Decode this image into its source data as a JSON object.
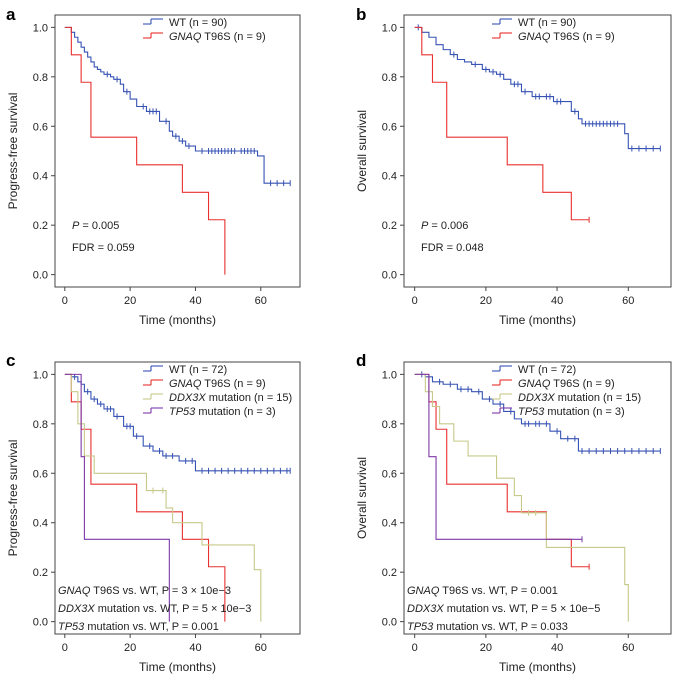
{
  "chart_data": [
    {
      "type": "line",
      "panel": "a",
      "title": "",
      "xlabel": "Time (months)",
      "ylabel": "Progress-free survival",
      "xlim": [
        -3,
        72
      ],
      "ylim": [
        -0.05,
        1.05
      ],
      "xticks": [
        0,
        20,
        40,
        60
      ],
      "yticks": [
        0.0,
        0.2,
        0.4,
        0.6,
        0.8,
        1.0
      ],
      "legend": "top-right",
      "series": [
        {
          "key": "wt",
          "italic": "",
          "name": "WT (n = 90)",
          "color": "#3753b4",
          "x": [
            0,
            2,
            3,
            4,
            5,
            6,
            7,
            8,
            9,
            10,
            11,
            12,
            14,
            15,
            17,
            18,
            20,
            22,
            25,
            29,
            32,
            33,
            35,
            37,
            40,
            59,
            61,
            69
          ],
          "y": [
            1.0,
            0.98,
            0.96,
            0.94,
            0.92,
            0.9,
            0.88,
            0.86,
            0.84,
            0.83,
            0.82,
            0.81,
            0.8,
            0.79,
            0.77,
            0.74,
            0.71,
            0.68,
            0.66,
            0.62,
            0.58,
            0.56,
            0.54,
            0.52,
            0.5,
            0.48,
            0.37,
            0.37
          ],
          "censor_x": [
            13,
            16,
            19,
            24,
            26,
            27,
            28,
            31,
            34,
            36,
            38,
            42,
            44,
            45,
            46,
            47,
            48,
            49,
            50,
            51,
            52,
            54,
            55,
            56,
            57,
            58,
            63,
            65,
            67,
            69
          ]
        },
        {
          "key": "gnaq",
          "italic": "GNAQ",
          "name": " T96S (n = 9)",
          "color": "#e8302e",
          "x": [
            0,
            2,
            5,
            8,
            22,
            36,
            44,
            49
          ],
          "y": [
            1.0,
            0.889,
            0.778,
            0.556,
            0.444,
            0.333,
            0.222,
            0.0
          ],
          "censor_x": []
        }
      ],
      "annotations": [
        {
          "italic": "P",
          "text": " = 0.005"
        },
        {
          "italic": "",
          "text": "FDR = 0.059"
        }
      ]
    },
    {
      "type": "line",
      "panel": "b",
      "title": "",
      "xlabel": "Time (months)",
      "ylabel": "Overall survival",
      "xlim": [
        -3,
        72
      ],
      "ylim": [
        -0.05,
        1.05
      ],
      "xticks": [
        0,
        20,
        40,
        60
      ],
      "yticks": [
        0.0,
        0.2,
        0.4,
        0.6,
        0.8,
        1.0
      ],
      "legend": "top-right",
      "series": [
        {
          "key": "wt",
          "italic": "",
          "name": "WT (n = 90)",
          "color": "#3753b4",
          "x": [
            0,
            2,
            4,
            6,
            8,
            10,
            12,
            14,
            16,
            19,
            21,
            23,
            25,
            27,
            30,
            33,
            36,
            39,
            44,
            46,
            47,
            59,
            60,
            69
          ],
          "y": [
            1.0,
            0.98,
            0.96,
            0.93,
            0.91,
            0.89,
            0.87,
            0.86,
            0.85,
            0.83,
            0.82,
            0.81,
            0.79,
            0.77,
            0.74,
            0.72,
            0.72,
            0.7,
            0.66,
            0.63,
            0.61,
            0.57,
            0.51,
            0.51
          ],
          "censor_x": [
            1,
            11,
            17,
            20,
            22,
            24,
            28,
            29,
            31,
            34,
            35,
            37,
            38,
            40,
            41,
            45,
            48,
            49,
            50,
            51,
            52,
            53,
            54,
            55,
            56,
            57,
            61,
            63,
            65,
            67,
            69
          ]
        },
        {
          "key": "gnaq",
          "italic": "GNAQ",
          "name": " T96S (n = 9)",
          "color": "#e8302e",
          "x": [
            0,
            2,
            5,
            9,
            26,
            36,
            44,
            49
          ],
          "y": [
            1.0,
            0.889,
            0.778,
            0.556,
            0.444,
            0.333,
            0.222,
            0.222
          ],
          "censor_x": [
            49
          ]
        }
      ],
      "annotations": [
        {
          "italic": "P",
          "text": " = 0.006"
        },
        {
          "italic": "",
          "text": "FDR = 0.048"
        }
      ]
    },
    {
      "type": "line",
      "panel": "c",
      "title": "",
      "xlabel": "Time (months)",
      "ylabel": "Progress-free survival",
      "xlim": [
        -3,
        72
      ],
      "ylim": [
        -0.05,
        1.05
      ],
      "xticks": [
        0,
        20,
        40,
        60
      ],
      "yticks": [
        0.0,
        0.2,
        0.4,
        0.6,
        0.8,
        1.0
      ],
      "legend": "top-right",
      "series": [
        {
          "key": "wt",
          "italic": "",
          "name": "WT (n = 72)",
          "color": "#3753b4",
          "x": [
            0,
            2,
            4,
            5,
            6,
            8,
            10,
            12,
            15,
            18,
            21,
            24,
            27,
            30,
            35,
            40,
            69
          ],
          "y": [
            1.0,
            0.99,
            0.97,
            0.96,
            0.93,
            0.9,
            0.88,
            0.86,
            0.83,
            0.79,
            0.75,
            0.71,
            0.69,
            0.67,
            0.65,
            0.61,
            0.61
          ],
          "censor_x": [
            3,
            7,
            9,
            11,
            13,
            14,
            16,
            19,
            20,
            22,
            26,
            29,
            31,
            33,
            37,
            39,
            42,
            44,
            46,
            48,
            50,
            52,
            54,
            56,
            58,
            60,
            62,
            64,
            66,
            68,
            69
          ]
        },
        {
          "key": "gnaq",
          "italic": "GNAQ",
          "name": " T96S (n = 9)",
          "color": "#e8302e",
          "x": [
            0,
            2,
            5,
            8,
            22,
            36,
            44,
            49
          ],
          "y": [
            1.0,
            0.889,
            0.778,
            0.556,
            0.444,
            0.333,
            0.222,
            0.0
          ],
          "censor_x": []
        },
        {
          "key": "ddx",
          "italic": "DDX3X",
          "name": " mutation (n = 15)",
          "color": "#c7c98a",
          "x": [
            0,
            2,
            4,
            6,
            9,
            14,
            25,
            31,
            33,
            42,
            58,
            60
          ],
          "y": [
            1.0,
            0.93,
            0.8,
            0.67,
            0.6,
            0.6,
            0.53,
            0.46,
            0.4,
            0.31,
            0.21,
            0.0
          ],
          "censor_x": [
            6,
            27,
            30
          ]
        },
        {
          "key": "tp53",
          "italic": "TP53",
          "name": " mutation (n = 3)",
          "color": "#7d39a8",
          "x": [
            0,
            5,
            6,
            32
          ],
          "y": [
            1.0,
            0.667,
            0.333,
            0.0
          ],
          "censor_x": []
        }
      ],
      "annotations": [
        {
          "italic": "GNAQ",
          "text": " T96S vs. WT, P = 3 × 10e−3"
        },
        {
          "italic": "DDX3X",
          "text": " mutation vs. WT, P = 5 × 10e−3"
        },
        {
          "italic": "TP53",
          "text": " mutation vs. WT, P = 0.001"
        }
      ]
    },
    {
      "type": "line",
      "panel": "d",
      "title": "",
      "xlabel": "Time (months)",
      "ylabel": "Overall survival",
      "xlim": [
        -3,
        72
      ],
      "ylim": [
        -0.05,
        1.05
      ],
      "xticks": [
        0,
        20,
        40,
        60
      ],
      "yticks": [
        0.0,
        0.2,
        0.4,
        0.6,
        0.8,
        1.0
      ],
      "legend": "top-right",
      "series": [
        {
          "key": "wt",
          "italic": "",
          "name": "WT (n = 72)",
          "color": "#3753b4",
          "x": [
            0,
            3,
            5,
            8,
            12,
            16,
            19,
            22,
            25,
            28,
            30,
            33,
            38,
            41,
            46,
            69
          ],
          "y": [
            1.0,
            0.99,
            0.97,
            0.96,
            0.94,
            0.93,
            0.9,
            0.88,
            0.85,
            0.82,
            0.8,
            0.8,
            0.77,
            0.74,
            0.69,
            0.69
          ],
          "censor_x": [
            2,
            7,
            10,
            13,
            15,
            18,
            21,
            24,
            27,
            31,
            32,
            34,
            35,
            37,
            40,
            43,
            45,
            47,
            49,
            51,
            53,
            55,
            57,
            59,
            61,
            63,
            65,
            67,
            69
          ]
        },
        {
          "key": "gnaq",
          "italic": "GNAQ",
          "name": " T96S (n = 9)",
          "color": "#e8302e",
          "x": [
            0,
            4,
            6,
            9,
            26,
            37,
            44,
            49
          ],
          "y": [
            1.0,
            0.889,
            0.778,
            0.556,
            0.444,
            0.333,
            0.222,
            0.222
          ],
          "censor_x": [
            49
          ]
        },
        {
          "key": "ddx",
          "italic": "DDX3X",
          "name": " mutation (n = 15)",
          "color": "#c7c98a",
          "x": [
            0,
            3,
            5,
            7,
            11,
            15,
            23,
            28,
            30,
            35,
            37,
            59,
            60
          ],
          "y": [
            1.0,
            0.93,
            0.87,
            0.8,
            0.73,
            0.67,
            0.58,
            0.51,
            0.44,
            0.44,
            0.3,
            0.15,
            0.0
          ],
          "censor_x": [
            32,
            34
          ]
        },
        {
          "key": "tp53",
          "italic": "TP53",
          "name": " mutation (n = 3)",
          "color": "#7d39a8",
          "x": [
            0,
            4,
            6,
            9,
            47
          ],
          "y": [
            1.0,
            0.667,
            0.333,
            0.333,
            0.333
          ],
          "censor_x": [
            47
          ]
        }
      ],
      "annotations": [
        {
          "italic": "GNAQ",
          "text": " T96S vs. WT, P = 0.001"
        },
        {
          "italic": "DDX3X",
          "text": " mutation vs. WT, P = 5 × 10e−5"
        },
        {
          "italic": "TP53",
          "text": " mutation vs. WT, P = 0.033"
        }
      ]
    }
  ]
}
